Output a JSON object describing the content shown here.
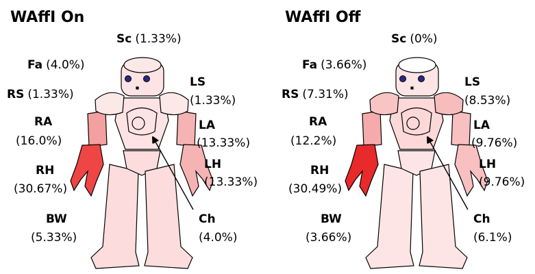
{
  "panels": [
    {
      "title": "WAffI On",
      "parts": [
        {
          "code": "Sc",
          "value": "(1.33%)",
          "color": "#fde8e8"
        },
        {
          "code": "Fa",
          "value": "(4.0%)",
          "color": "#fde3e3"
        },
        {
          "code": "RS",
          "value": "(1.33%)",
          "color": "#fde8e8"
        },
        {
          "code": "LS",
          "value": "(1.33%)",
          "color": "#fde8e8"
        },
        {
          "code": "RA",
          "value": "(16.0%)",
          "color": "#f3a0a0"
        },
        {
          "code": "LA",
          "value": "(13.33%)",
          "color": "#f6b3b3"
        },
        {
          "code": "RH",
          "value": "(30.67%)",
          "color": "#ef4545"
        },
        {
          "code": "LH",
          "value": "(13.33%)",
          "color": "#f6b3b3"
        },
        {
          "code": "BW",
          "value": "(5.33%)",
          "color": "#fcdcdc"
        },
        {
          "code": "Ch",
          "value": "(4.0%)",
          "color": "#fde3e3"
        }
      ]
    },
    {
      "title": "WAffI Off",
      "parts": [
        {
          "code": "Sc",
          "value": "(0%)",
          "color": "#ffffff"
        },
        {
          "code": "Fa",
          "value": "(3.66%)",
          "color": "#fde5e5"
        },
        {
          "code": "RS",
          "value": "(7.31%)",
          "color": "#f8c4c4"
        },
        {
          "code": "LS",
          "value": "(8.53%)",
          "color": "#f7bcbc"
        },
        {
          "code": "RA",
          "value": "(12.2%)",
          "color": "#f5abab"
        },
        {
          "code": "LA",
          "value": "(9.76%)",
          "color": "#f8c0c0"
        },
        {
          "code": "RH",
          "value": "(30.49%)",
          "color": "#e82a2a"
        },
        {
          "code": "LH",
          "value": "(9.76%)",
          "color": "#f8c0c0"
        },
        {
          "code": "BW",
          "value": "(3.66%)",
          "color": "#fde5e5"
        },
        {
          "code": "Ch",
          "value": "(6.1%)",
          "color": "#fcd8d8"
        }
      ]
    }
  ]
}
